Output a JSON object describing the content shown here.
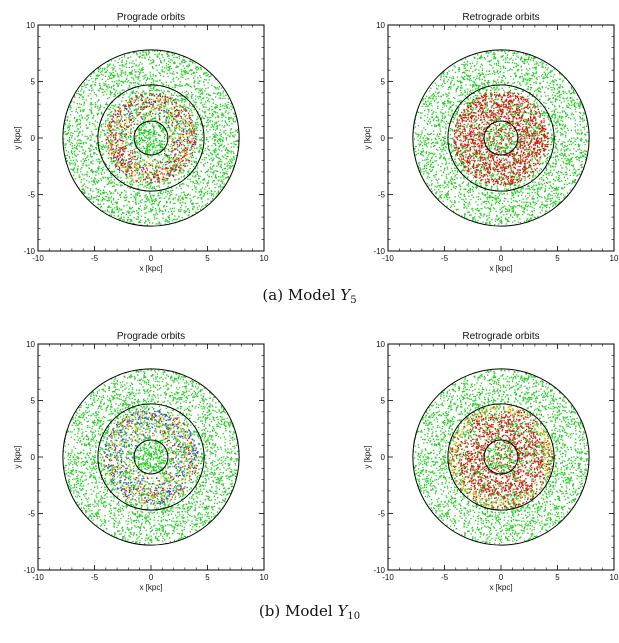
{
  "figure": {
    "caption_a": {
      "tag": "(a)",
      "text": "Model",
      "var": "Y",
      "sub": "5"
    },
    "caption_b": {
      "tag": "(b)",
      "text": "Model",
      "var": "Y",
      "sub": "10"
    }
  },
  "colors": {
    "outer_disk": "#22cc22",
    "ring_red": "#e01010",
    "ring_yellow": "#e8c020",
    "ring_blue": "#2050e0",
    "circle_line": "#000000"
  },
  "chart_data": [
    {
      "type": "scatter",
      "title": "Prograde orbits",
      "xlabel": "x [kpc]",
      "ylabel": "y [kpc]",
      "xlim": [
        -10,
        10
      ],
      "ylim": [
        -10,
        10
      ],
      "xticks": [
        -10,
        -5,
        0,
        5,
        10
      ],
      "yticks": [
        -10,
        -5,
        0,
        5,
        10
      ],
      "circles_radius_kpc": [
        1.5,
        4.7,
        7.8
      ],
      "series": [
        {
          "color": "green",
          "r_range": [
            0,
            7.8
          ],
          "density": "uniform"
        },
        {
          "color": "red/yellow/blue",
          "r_range": [
            1.5,
            4.0
          ],
          "description": "ring"
        }
      ]
    },
    {
      "type": "scatter",
      "title": "Retrograde orbits",
      "xlabel": "x [kpc]",
      "ylabel": "y [kpc]",
      "xlim": [
        -10,
        10
      ],
      "ylim": [
        -10,
        10
      ],
      "xticks": [
        -10,
        -5,
        0,
        5,
        10
      ],
      "yticks": [
        -10,
        -5,
        0,
        5,
        10
      ],
      "circles_radius_kpc": [
        1.5,
        4.7,
        7.8
      ],
      "series": [
        {
          "color": "green",
          "r_range": [
            0,
            7.8
          ],
          "density": "uniform"
        },
        {
          "color": "red",
          "r_range": [
            0,
            4.2
          ],
          "description": "filled red region"
        }
      ]
    },
    {
      "type": "scatter",
      "title": "Prograde orbits",
      "xlabel": "x [kpc]",
      "ylabel": "y [kpc]",
      "xlim": [
        -10,
        10
      ],
      "ylim": [
        -10,
        10
      ],
      "xticks": [
        -10,
        -5,
        0,
        5,
        10
      ],
      "yticks": [
        -10,
        -5,
        0,
        5,
        10
      ],
      "circles_radius_kpc": [
        1.5,
        4.7,
        7.8
      ],
      "series": [
        {
          "color": "green",
          "r_range": [
            0,
            7.8
          ],
          "density": "uniform"
        },
        {
          "color": "blue/yellow/red",
          "r_range": [
            1.5,
            4.2
          ],
          "description": "ring"
        }
      ]
    },
    {
      "type": "scatter",
      "title": "Retrograde orbits",
      "xlabel": "x [kpc]",
      "ylabel": "y [kpc]",
      "xlim": [
        -10,
        10
      ],
      "ylim": [
        -10,
        10
      ],
      "xticks": [
        -10,
        -5,
        0,
        5,
        10
      ],
      "yticks": [
        -10,
        -5,
        0,
        5,
        10
      ],
      "circles_radius_kpc": [
        1.5,
        4.7,
        7.8
      ],
      "series": [
        {
          "color": "green",
          "r_range": [
            0,
            7.8
          ],
          "density": "uniform"
        },
        {
          "color": "red/yellow",
          "r_range": [
            0,
            4.6
          ],
          "description": "filled red region with yellow rim"
        }
      ]
    }
  ]
}
